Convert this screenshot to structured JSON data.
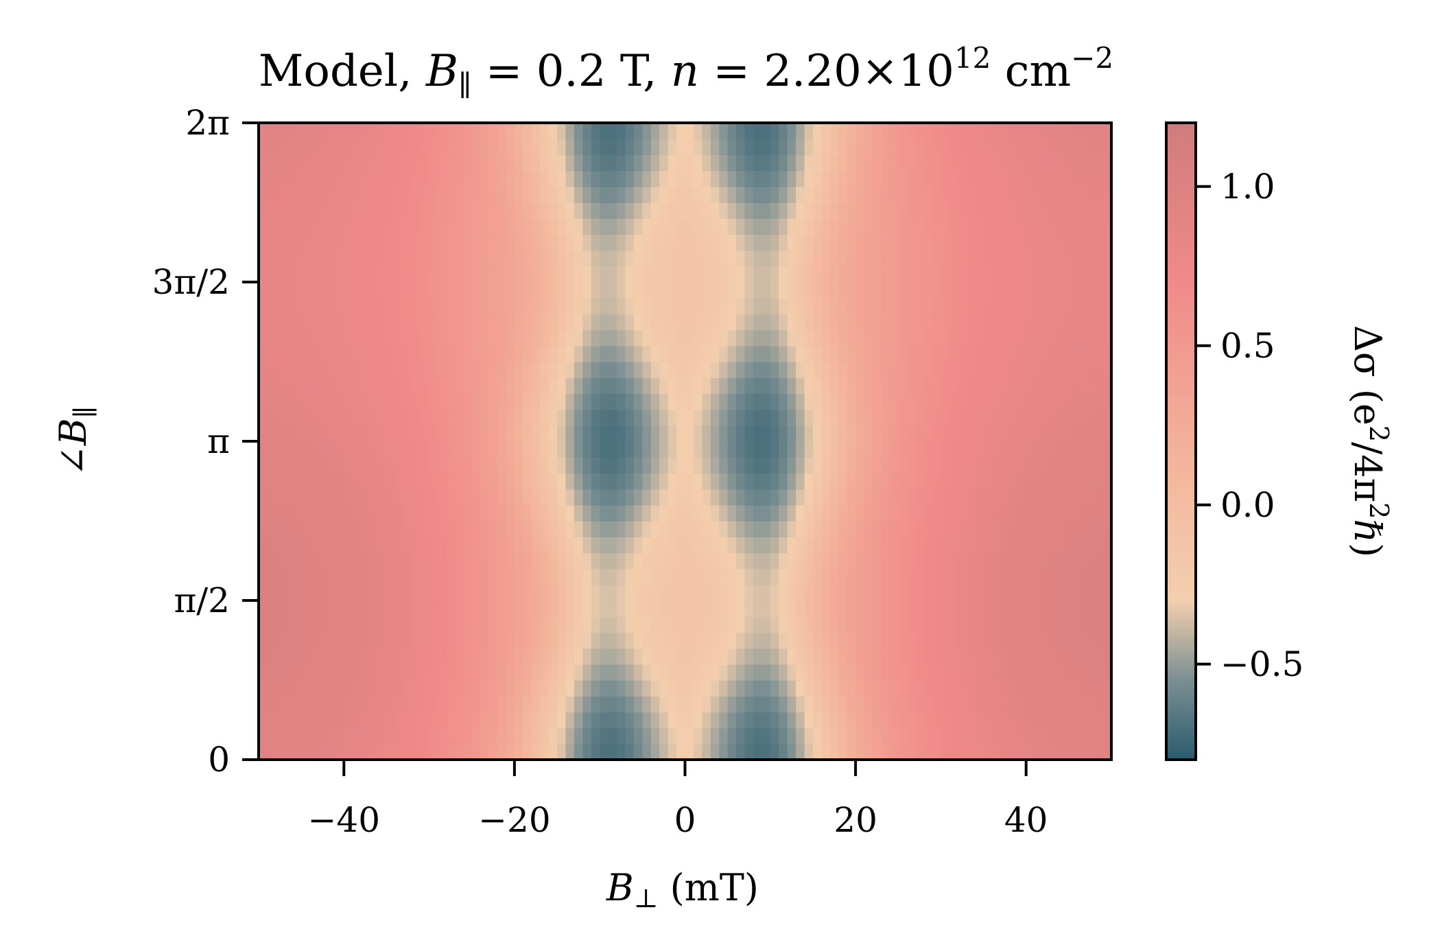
{
  "chart_data": {
    "type": "heatmap",
    "title": {
      "prefix": "Model, ",
      "b_sym": "B",
      "b_sub": "∥",
      "b_val": " = 0.2 T, ",
      "n_sym": "n",
      "n_val": " = 2.20×10",
      "n_exp": "12",
      "unit": " cm",
      "unit_exp": "−2"
    },
    "xlabel": {
      "sym": "B",
      "sub": "⊥",
      "unit": " (mT)"
    },
    "ylabel": {
      "angle": "∠",
      "sym": "B",
      "sub": "∥"
    },
    "colorbar_label": {
      "text": "Δσ (e",
      "exp": "2",
      "mid": "/4π",
      "exp2": "2",
      "end": "ℏ)"
    },
    "xlim": [
      -50,
      50
    ],
    "ylim": [
      0,
      6.2832
    ],
    "x_ticks": [
      {
        "value": -40,
        "label": "−40"
      },
      {
        "value": -20,
        "label": "−20"
      },
      {
        "value": 0,
        "label": "0"
      },
      {
        "value": 20,
        "label": "20"
      },
      {
        "value": 40,
        "label": "40"
      }
    ],
    "y_ticks": [
      {
        "value": 0,
        "label": "0"
      },
      {
        "value": 1.5708,
        "label": "π/2"
      },
      {
        "value": 3.1416,
        "label": "π"
      },
      {
        "value": 4.7124,
        "label": "3π/2"
      },
      {
        "value": 6.2832,
        "label": "2π"
      }
    ],
    "colorbar": {
      "vmin": -0.8,
      "vmax": 1.2,
      "ticks": [
        {
          "value": 1.0,
          "label": "1.0"
        },
        {
          "value": 0.5,
          "label": "0.5"
        },
        {
          "value": 0.0,
          "label": "0.0"
        },
        {
          "value": -0.5,
          "label": "−0.5"
        }
      ],
      "colormap": [
        {
          "v": -0.8,
          "color": "#2b5b6e"
        },
        {
          "v": -0.55,
          "color": "#7b8f92"
        },
        {
          "v": -0.3,
          "color": "#f3cfae"
        },
        {
          "v": 0.1,
          "color": "#f3b79c"
        },
        {
          "v": 0.7,
          "color": "#f08a8a"
        },
        {
          "v": 1.2,
          "color": "#d07c7c"
        }
      ]
    },
    "features": {
      "minima_x_mT": [
        -10,
        10
      ],
      "minimum_value": -0.78,
      "central_value_at_0": -0.1,
      "maximum_value": 1.05,
      "minima_strongest_at_angle": [
        0,
        3.1416,
        6.2832
      ]
    }
  }
}
